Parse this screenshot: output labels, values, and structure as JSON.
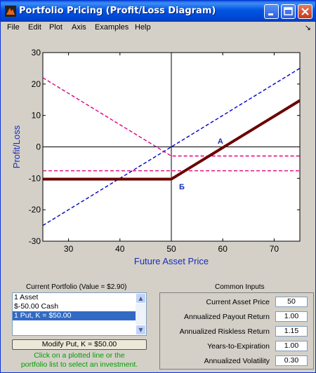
{
  "window": {
    "title": "Portfolio Pricing (Profit/Loss Diagram)"
  },
  "menu": {
    "items": [
      "File",
      "Edit",
      "Plot",
      "Axis",
      "Examples",
      "Help"
    ],
    "arrow": "↘"
  },
  "chart_data": {
    "type": "line",
    "xlabel": "Future Asset Price",
    "ylabel": "Profit/Loss",
    "xlim": [
      25,
      75
    ],
    "ylim": [
      -30,
      30
    ],
    "xticks": [
      30,
      40,
      50,
      60,
      70
    ],
    "yticks": [
      -30,
      -20,
      -10,
      0,
      10,
      20,
      30
    ],
    "grid": false,
    "series": [
      {
        "color": "#0000cc",
        "style": "dashed",
        "x": [
          25,
          75
        ],
        "y": [
          -25,
          25
        ]
      },
      {
        "color": "#e0007f",
        "style": "dashed",
        "x": [
          25,
          50,
          75
        ],
        "y": [
          22,
          -2.9,
          -2.9
        ]
      },
      {
        "color": "#e0007f",
        "style": "dashed",
        "x": [
          25,
          75
        ],
        "y": [
          -7.6,
          -7.6
        ]
      },
      {
        "color": "#6b0000",
        "style": "solid",
        "x": [
          25,
          50,
          75
        ],
        "y": [
          -10.25,
          -10.25,
          14.75
        ]
      }
    ],
    "annotations": [
      {
        "text": "A",
        "x": 59,
        "y": 1
      },
      {
        "text": "Б",
        "x": 51.5,
        "y": -13.5
      }
    ]
  },
  "portfolio": {
    "title": "Current Portfolio (Value = $2.90)",
    "items": [
      "1 Asset",
      "$-50.00 Cash",
      "1 Put, K = $50.00"
    ],
    "selected_index": 2,
    "modify_button": "Modify Put, K = $50.00",
    "hint_line1": "Click on a plotted line or the",
    "hint_line2": "portfolio list to select an investment."
  },
  "inputs": {
    "title": "Common Inputs",
    "fields": [
      {
        "label": "Current Asset Price",
        "value": "50"
      },
      {
        "label": "Annualized Payout Return",
        "value": "1.00"
      },
      {
        "label": "Annualized Riskless Return",
        "value": "1.15"
      },
      {
        "label": "Years-to-Expiration",
        "value": "1.00"
      },
      {
        "label": "Annualized Volatility",
        "value": "0.30"
      }
    ]
  },
  "colors": {
    "title_bar": "#0054e3",
    "axis_text": "#1a2bb5",
    "hint_text": "#00a000",
    "selection": "#316ac5"
  }
}
